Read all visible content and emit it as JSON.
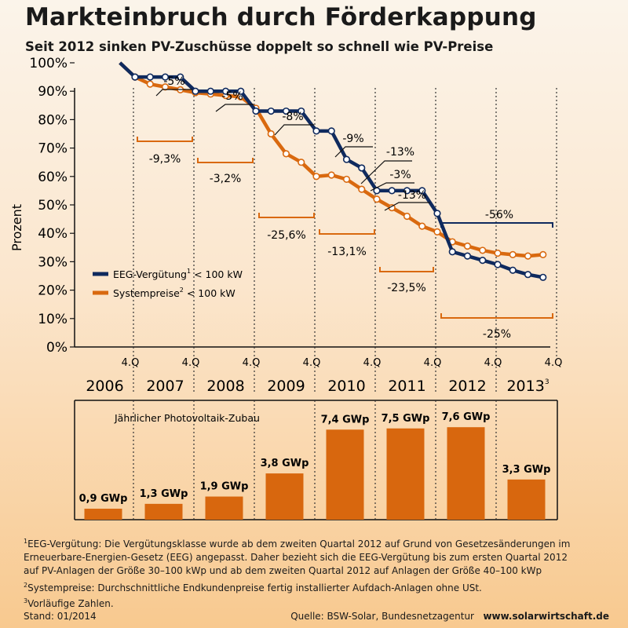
{
  "title": "Markteinbruch durch Förderkappung",
  "subtitle": "Seit 2012 sinken PV-Zuschüsse doppelt so schnell wie PV-Preise",
  "colors": {
    "eeg": "#0f2a5e",
    "system": "#d9690f",
    "bar": "#d8670e",
    "text": "#1a1a1a"
  },
  "chart_data": [
    {
      "type": "line",
      "ylabel": "Prozent",
      "ylim": [
        0,
        100
      ],
      "yticks": [
        "0%",
        "10%",
        "20%",
        "30%",
        "40%",
        "50%",
        "60%",
        "70%",
        "80%",
        "90%",
        "100%"
      ],
      "quarter_label": "4.Q",
      "years": [
        "2006",
        "2007",
        "2008",
        "2009",
        "2010",
        "2011",
        "2012",
        "2013"
      ],
      "year_footnote": {
        "year": "2013",
        "mark": "3"
      },
      "legend_placement": "center-left",
      "series": [
        {
          "name": "EEG-Vergütung",
          "note": "1",
          "suffix": " < 100 kW",
          "color": "#0f2a5e",
          "x": [
            2006.75,
            2007.0,
            2007.25,
            2007.5,
            2007.75,
            2008.0,
            2008.25,
            2008.5,
            2008.75,
            2009.0,
            2009.25,
            2009.5,
            2009.75,
            2010.0,
            2010.25,
            2010.5,
            2010.75,
            2011.0,
            2011.25,
            2011.5,
            2011.75,
            2012.0,
            2012.25,
            2012.5,
            2012.75,
            2013.0,
            2013.25,
            2013.5,
            2013.75
          ],
          "y": [
            100,
            95,
            95,
            95,
            95,
            90,
            90,
            90,
            90,
            83,
            83,
            83,
            83,
            76,
            76,
            66,
            63,
            55,
            55,
            55,
            55,
            47,
            33.5,
            32,
            30.5,
            29,
            27,
            25.5,
            24.5
          ]
        },
        {
          "name": "Systempreise",
          "note": "2",
          "suffix": " < 100 kW",
          "color": "#d9690f",
          "x": [
            2006.75,
            2007.0,
            2007.25,
            2007.5,
            2007.75,
            2008.0,
            2008.25,
            2008.5,
            2008.75,
            2009.0,
            2009.25,
            2009.5,
            2009.75,
            2010.0,
            2010.25,
            2010.5,
            2010.75,
            2011.0,
            2011.25,
            2011.5,
            2011.75,
            2012.0,
            2012.25,
            2012.5,
            2012.75,
            2013.0,
            2013.25,
            2013.5,
            2013.75
          ],
          "y": [
            100,
            95,
            92.5,
            91.5,
            90.5,
            89.5,
            89,
            88.5,
            88,
            84,
            75,
            68,
            65,
            60,
            60.5,
            59,
            55.5,
            52,
            49,
            46,
            42.5,
            40.5,
            37,
            35.5,
            34,
            33,
            32.5,
            32,
            32.5
          ]
        }
      ],
      "annotations": [
        {
          "text": "-5%",
          "series": "EEG-Vergütung"
        },
        {
          "text": "-5%",
          "series": "EEG-Vergütung"
        },
        {
          "text": "-8%",
          "series": "EEG-Vergütung"
        },
        {
          "text": "-9%",
          "series": "EEG-Vergütung"
        },
        {
          "text": "-13%",
          "series": "EEG-Vergütung"
        },
        {
          "text": "-3%",
          "series": "EEG-Vergütung"
        },
        {
          "text": "-13%",
          "series": "EEG-Vergütung"
        },
        {
          "text": "-56%",
          "series": "EEG-Vergütung"
        },
        {
          "text": "-9,3%",
          "series": "Systempreise"
        },
        {
          "text": "-3,2%",
          "series": "Systempreise"
        },
        {
          "text": "-25,6%",
          "series": "Systempreise"
        },
        {
          "text": "-13,1%",
          "series": "Systempreise"
        },
        {
          "text": "-23,5%",
          "series": "Systempreise"
        },
        {
          "text": "-25%",
          "series": "Systempreise"
        }
      ]
    },
    {
      "type": "bar",
      "title": "Jährlicher Photovoltaik-Zubau",
      "categories": [
        "2006",
        "2007",
        "2008",
        "2009",
        "2010",
        "2011",
        "2012",
        "2013"
      ],
      "values": [
        0.9,
        1.3,
        1.9,
        3.8,
        7.4,
        7.5,
        7.6,
        3.3
      ],
      "labels": [
        "0,9 GWp",
        "1,3 GWp",
        "1,9 GWp",
        "3,8 GWp",
        "7,4 GWp",
        "7,5 GWp",
        "7,6 GWp",
        "3,3 GWp"
      ],
      "unit": "GWp"
    }
  ],
  "footnotes": {
    "f1_mark": "1",
    "f1_l1": "EEG-Vergütung: Die Vergütungsklasse wurde ab dem zweiten Quartal 2012 auf Grund von Gesetzesänderungen im",
    "f1_l2": "Erneuerbare-Energien-Gesetz (EEG) angepasst. Daher bezieht sich die EEG-Vergütung bis zum ersten Quartal 2012",
    "f1_l3": "auf PV-Anlagen der Größe 30–100 kWp und ab dem zweiten Quartal 2012 auf Anlagen der Größe 40–100 kWp",
    "f2_mark": "2",
    "f2": "Systempreise: Durchschnittliche Endkundenpreise fertig installierter Aufdach-Anlagen ohne USt.",
    "f3_mark": "3",
    "f3": "Vorläufige Zahlen."
  },
  "stand": "Stand: 01/2014",
  "source_text": "Quelle: BSW-Solar, Bundesnetzagentur",
  "source_url": "www.solarwirtschaft.de"
}
